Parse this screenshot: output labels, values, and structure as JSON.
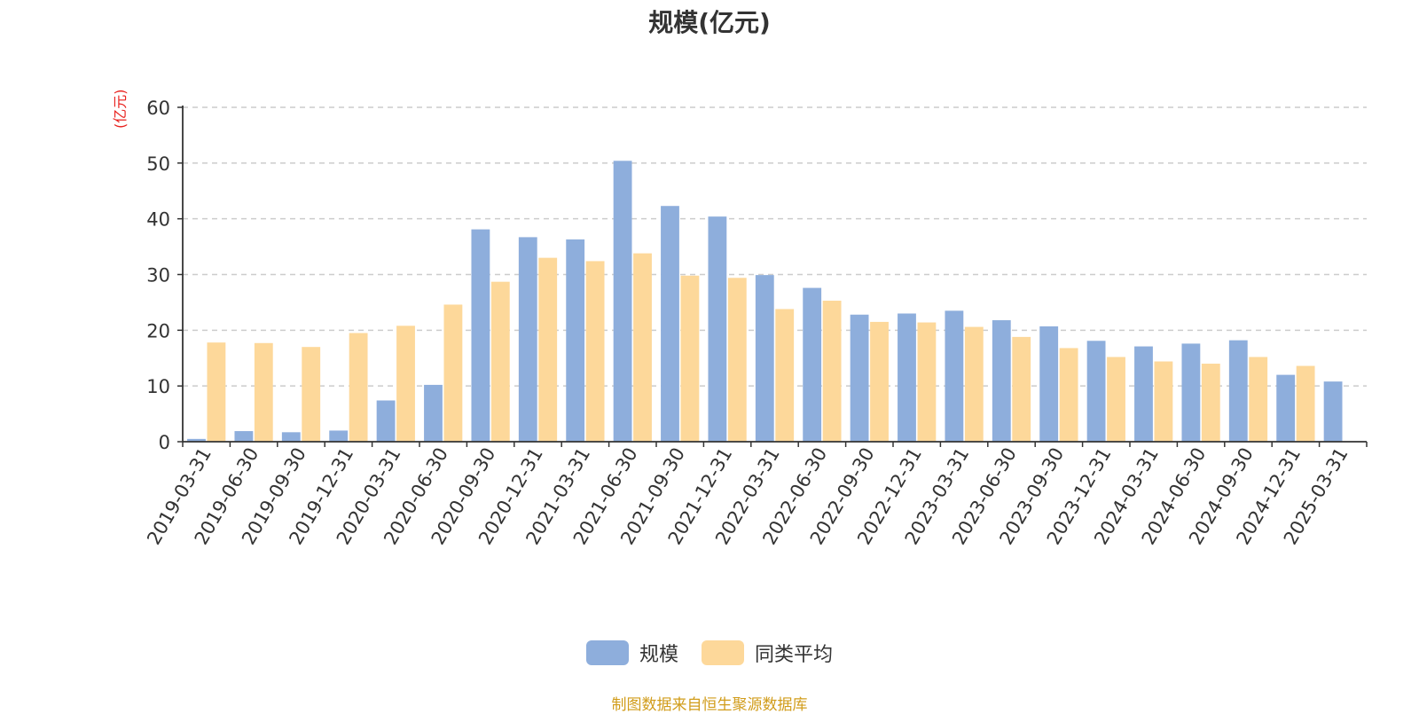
{
  "chart_data": {
    "type": "bar",
    "title": "规模(亿元)",
    "ylabel": "(亿元)",
    "xlabel": "",
    "ylim": [
      0,
      60
    ],
    "yticks": [
      0,
      10,
      20,
      30,
      40,
      50,
      60
    ],
    "grid": true,
    "legend_position": "bottom-center",
    "categories": [
      "2019-03-31",
      "2019-06-30",
      "2019-09-30",
      "2019-12-31",
      "2020-03-31",
      "2020-06-30",
      "2020-09-30",
      "2020-12-31",
      "2021-03-31",
      "2021-06-30",
      "2021-09-30",
      "2021-12-31",
      "2022-03-31",
      "2022-06-30",
      "2022-09-30",
      "2022-12-31",
      "2023-03-31",
      "2023-06-30",
      "2023-09-30",
      "2023-12-31",
      "2024-03-31",
      "2024-06-30",
      "2024-09-30",
      "2024-12-31",
      "2025-03-31"
    ],
    "series": [
      {
        "name": "规模",
        "color": "#8eaedc",
        "values": [
          0.5,
          1.9,
          1.7,
          2.0,
          7.4,
          10.2,
          38.1,
          36.7,
          36.3,
          50.4,
          42.3,
          40.4,
          29.9,
          27.6,
          22.8,
          23.0,
          23.5,
          21.8,
          20.7,
          18.1,
          17.1,
          17.6,
          18.2,
          12.0,
          10.8
        ]
      },
      {
        "name": "同类平均",
        "color": "#fdd89a",
        "values": [
          17.8,
          17.7,
          17.0,
          19.5,
          20.8,
          24.6,
          28.7,
          33.0,
          32.4,
          33.8,
          29.8,
          29.4,
          23.8,
          25.3,
          21.5,
          21.4,
          20.6,
          18.8,
          16.8,
          15.2,
          14.4,
          14.0,
          15.2,
          13.6,
          null
        ]
      }
    ]
  },
  "legend": {
    "items": [
      {
        "label": "规模",
        "color": "#8eaedc"
      },
      {
        "label": "同类平均",
        "color": "#fdd89a"
      }
    ]
  },
  "footer": {
    "source": "制图数据来自恒生聚源数据库"
  }
}
